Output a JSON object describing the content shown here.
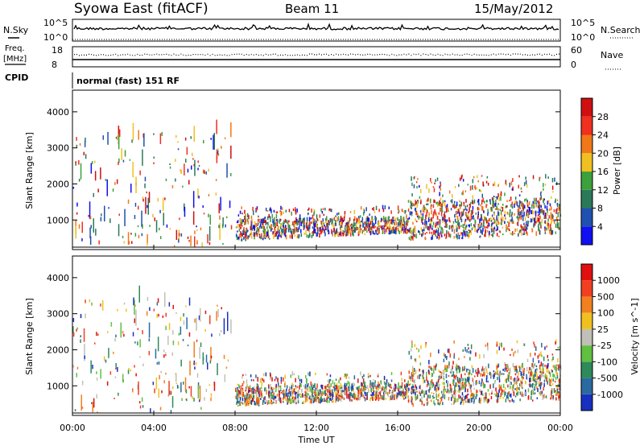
{
  "header": {
    "station": "Syowa East (fitACF)",
    "beam": "Beam 11",
    "date": "15/May/2012"
  },
  "top_panels": {
    "nsky_label": "N.Sky",
    "nsky_top": "10^5",
    "nsky_bottom": "10^0",
    "nsearch_label": "N.Search",
    "nsearch_top": "10^5",
    "nsearch_bottom": "10^0",
    "freq_label": "Freq.",
    "freq_unit": "[MHz]",
    "freq_top": "18",
    "freq_bottom": "8",
    "nave_label": "Nave",
    "nave_top": "60",
    "nave_bottom": "0",
    "cpid_label": "CPID",
    "cpid_value": "normal (fast) 151 RF"
  },
  "chart_data": [
    {
      "type": "heatmap",
      "name": "Power",
      "ylabel": "Slant Range [km]",
      "yticks": [
        "1000",
        "2000",
        "3000",
        "4000"
      ],
      "ylim": [
        180,
        4600
      ],
      "xlim": [
        0,
        24
      ],
      "colorbar_label": "Power [dB]",
      "colorbar_ticks": [
        "4",
        "8",
        "12",
        "16",
        "20",
        "24",
        "28"
      ],
      "colorbar_colors": [
        "#1010f0",
        "#2050b0",
        "#2a7a5a",
        "#3ca03c",
        "#f0c020",
        "#f07818",
        "#f03020",
        "#d01010"
      ],
      "echo_regions": [
        {
          "t0": 0.0,
          "t1": 7.8,
          "r0": 200,
          "r1": 3400,
          "level": "sparse"
        },
        {
          "t0": 8.0,
          "t1": 16.5,
          "r0": 300,
          "r1": 1300,
          "level": "dense"
        },
        {
          "t0": 16.5,
          "t1": 24.0,
          "r0": 300,
          "r1": 2200,
          "level": "dense"
        }
      ]
    },
    {
      "type": "heatmap",
      "name": "Velocity",
      "ylabel": "Slant Range [km]",
      "yticks": [
        "1000",
        "2000",
        "3000",
        "4000"
      ],
      "ylim": [
        180,
        4600
      ],
      "xlim": [
        0,
        24
      ],
      "colorbar_label": "Velocity [m s^-1]",
      "colorbar_ticks": [
        "1000",
        "500",
        "100",
        "25",
        "-25",
        "-100",
        "-500",
        "-1000"
      ],
      "colorbar_colors": [
        "#1830c0",
        "#2a6aa0",
        "#2e8a5a",
        "#60c040",
        "#c0c0b8",
        "#f0c020",
        "#f08020",
        "#f04020",
        "#e01010"
      ],
      "echo_regions": [
        {
          "t0": 0.0,
          "t1": 7.8,
          "r0": 200,
          "r1": 3400,
          "level": "sparse"
        },
        {
          "t0": 8.0,
          "t1": 16.5,
          "r0": 300,
          "r1": 1300,
          "level": "dense"
        },
        {
          "t0": 16.5,
          "t1": 24.0,
          "r0": 300,
          "r1": 2200,
          "level": "dense"
        }
      ]
    }
  ],
  "x_axis": {
    "ticks": [
      "00:00",
      "04:00",
      "08:00",
      "12:00",
      "16:00",
      "20:00",
      "00:00"
    ],
    "label": "Time UT"
  }
}
